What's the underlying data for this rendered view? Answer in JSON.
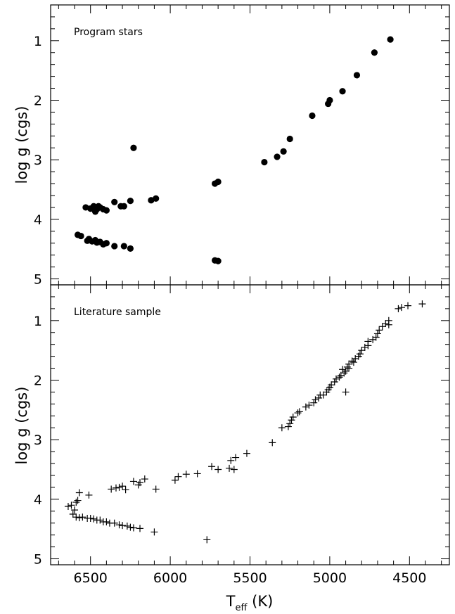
{
  "chart_data": [
    {
      "type": "scatter",
      "annotation": "Program stars",
      "ylabel": "log g (cgs)",
      "xlabel": "",
      "xlim": [
        6750,
        4250
      ],
      "ylim": [
        5.1,
        0.4
      ],
      "x_ticks": [
        6500,
        6000,
        5500,
        5000,
        4500
      ],
      "x_tick_labels": [],
      "y_ticks": [
        1,
        2,
        3,
        4,
        5
      ],
      "y_tick_labels": [
        "1",
        "2",
        "3",
        "4",
        "5"
      ],
      "marker": "filled-circle",
      "points": [
        [
          4620,
          0.98
        ],
        [
          4720,
          1.2
        ],
        [
          4830,
          1.58
        ],
        [
          4920,
          1.85
        ],
        [
          5000,
          2.0
        ],
        [
          5010,
          2.06
        ],
        [
          5110,
          2.26
        ],
        [
          5250,
          2.65
        ],
        [
          5290,
          2.86
        ],
        [
          5330,
          2.95
        ],
        [
          5410,
          3.04
        ],
        [
          5700,
          3.37
        ],
        [
          5720,
          3.4
        ],
        [
          5700,
          4.7
        ],
        [
          5720,
          4.69
        ],
        [
          6230,
          2.8
        ],
        [
          6090,
          3.65
        ],
        [
          6120,
          3.68
        ],
        [
          6250,
          3.69
        ],
        [
          6290,
          3.78
        ],
        [
          6310,
          3.78
        ],
        [
          6350,
          3.71
        ],
        [
          6400,
          3.85
        ],
        [
          6420,
          3.83
        ],
        [
          6440,
          3.8
        ],
        [
          6450,
          3.78
        ],
        [
          6460,
          3.83
        ],
        [
          6470,
          3.87
        ],
        [
          6480,
          3.78
        ],
        [
          6500,
          3.82
        ],
        [
          6530,
          3.8
        ],
        [
          6580,
          4.26
        ],
        [
          6560,
          4.28
        ],
        [
          6520,
          4.36
        ],
        [
          6510,
          4.33
        ],
        [
          6490,
          4.37
        ],
        [
          6470,
          4.35
        ],
        [
          6460,
          4.39
        ],
        [
          6440,
          4.38
        ],
        [
          6420,
          4.42
        ],
        [
          6400,
          4.4
        ],
        [
          6350,
          4.45
        ],
        [
          6290,
          4.45
        ],
        [
          6250,
          4.49
        ]
      ]
    },
    {
      "type": "scatter",
      "annotation": "Literature sample",
      "ylabel": "log g (cgs)",
      "xlabel": "T_eff (K)",
      "xlim": [
        6750,
        4250
      ],
      "ylim": [
        5.1,
        0.4
      ],
      "x_ticks": [
        6500,
        6000,
        5500,
        5000,
        4500
      ],
      "x_tick_labels": [
        "6500",
        "6000",
        "5500",
        "5000",
        "4500"
      ],
      "y_ticks": [
        1,
        2,
        3,
        4,
        5
      ],
      "y_tick_labels": [
        "1",
        "2",
        "3",
        "4",
        "5"
      ],
      "marker": "plus",
      "points": [
        [
          4420,
          0.72
        ],
        [
          4510,
          0.75
        ],
        [
          4550,
          0.78
        ],
        [
          4570,
          0.8
        ],
        [
          4630,
          1.0
        ],
        [
          4630,
          1.07
        ],
        [
          4650,
          1.05
        ],
        [
          4670,
          1.1
        ],
        [
          4690,
          1.16
        ],
        [
          4700,
          1.22
        ],
        [
          4710,
          1.28
        ],
        [
          4730,
          1.32
        ],
        [
          4760,
          1.35
        ],
        [
          4760,
          1.42
        ],
        [
          4780,
          1.45
        ],
        [
          4800,
          1.5
        ],
        [
          4810,
          1.56
        ],
        [
          4820,
          1.6
        ],
        [
          4840,
          1.64
        ],
        [
          4850,
          1.7
        ],
        [
          4860,
          1.68
        ],
        [
          4880,
          1.73
        ],
        [
          4880,
          1.8
        ],
        [
          4890,
          1.78
        ],
        [
          4900,
          1.85
        ],
        [
          4910,
          1.88
        ],
        [
          4920,
          1.82
        ],
        [
          4930,
          1.92
        ],
        [
          4940,
          1.95
        ],
        [
          4960,
          1.98
        ],
        [
          4970,
          2.03
        ],
        [
          4990,
          2.08
        ],
        [
          5000,
          2.12
        ],
        [
          5010,
          2.16
        ],
        [
          5020,
          2.2
        ],
        [
          5040,
          2.25
        ],
        [
          5060,
          2.25
        ],
        [
          5070,
          2.3
        ],
        [
          5090,
          2.33
        ],
        [
          5100,
          2.38
        ],
        [
          5130,
          2.42
        ],
        [
          5150,
          2.45
        ],
        [
          5190,
          2.53
        ],
        [
          5200,
          2.55
        ],
        [
          5230,
          2.62
        ],
        [
          5240,
          2.67
        ],
        [
          5250,
          2.73
        ],
        [
          5260,
          2.78
        ],
        [
          5300,
          2.8
        ],
        [
          4900,
          2.2
        ],
        [
          5360,
          3.05
        ],
        [
          5520,
          3.23
        ],
        [
          5590,
          3.3
        ],
        [
          5620,
          3.35
        ],
        [
          5600,
          3.5
        ],
        [
          5630,
          3.48
        ],
        [
          5700,
          3.5
        ],
        [
          5740,
          3.45
        ],
        [
          5830,
          3.57
        ],
        [
          5900,
          3.58
        ],
        [
          5950,
          3.62
        ],
        [
          5970,
          3.68
        ],
        [
          6090,
          3.83
        ],
        [
          6160,
          3.66
        ],
        [
          6190,
          3.72
        ],
        [
          6200,
          3.76
        ],
        [
          6230,
          3.7
        ],
        [
          6280,
          3.84
        ],
        [
          6300,
          3.78
        ],
        [
          6320,
          3.8
        ],
        [
          6340,
          3.81
        ],
        [
          6370,
          3.83
        ],
        [
          6510,
          3.93
        ],
        [
          6570,
          3.89
        ],
        [
          6580,
          4.02
        ],
        [
          6590,
          4.05
        ],
        [
          6620,
          4.1
        ],
        [
          6640,
          4.12
        ],
        [
          6600,
          4.18
        ],
        [
          6610,
          4.25
        ],
        [
          6590,
          4.3
        ],
        [
          6570,
          4.31
        ],
        [
          6550,
          4.3
        ],
        [
          6520,
          4.32
        ],
        [
          6500,
          4.32
        ],
        [
          6480,
          4.33
        ],
        [
          6460,
          4.35
        ],
        [
          6440,
          4.35
        ],
        [
          6420,
          4.38
        ],
        [
          6400,
          4.38
        ],
        [
          6380,
          4.4
        ],
        [
          6350,
          4.4
        ],
        [
          6320,
          4.43
        ],
        [
          6300,
          4.44
        ],
        [
          6270,
          4.45
        ],
        [
          6250,
          4.47
        ],
        [
          6230,
          4.48
        ],
        [
          6190,
          4.49
        ],
        [
          6100,
          4.55
        ],
        [
          5770,
          4.68
        ]
      ]
    }
  ]
}
